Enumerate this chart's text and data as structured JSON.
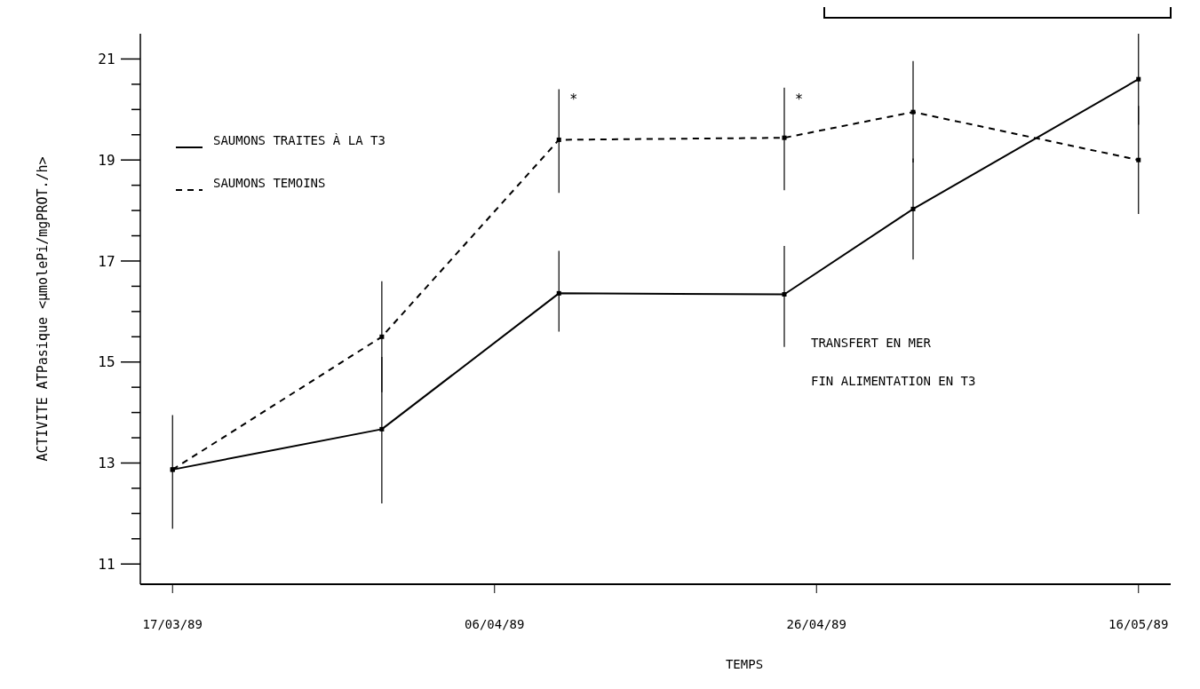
{
  "chart_data": {
    "type": "line",
    "xlabel": "TEMPS",
    "ylabel": "ACTIVITE ATPasique <µmolePi/mgPROT./h>",
    "x": [
      "1989-03-17",
      "1989-03-30",
      "1989-04-10",
      "1989-04-24",
      "1989-05-02",
      "1989-05-16"
    ],
    "series": [
      {
        "name": "SAUMONS TRAITES À LA T3",
        "color": "#000000",
        "line_style": "solid",
        "values": [
          12.87,
          13.67,
          16.36,
          16.34,
          18.03,
          20.6
        ],
        "errors": [
          [
            11.7,
            13.95
          ],
          [
            12.2,
            15.1
          ],
          [
            15.6,
            17.2
          ],
          [
            15.3,
            17.3
          ],
          [
            17.03,
            19.03
          ],
          [
            19.7,
            21.5
          ]
        ]
      },
      {
        "name": "SAUMONS TEMOINS",
        "color": "#000000",
        "line_style": "dashed",
        "values": [
          12.87,
          15.5,
          19.4,
          19.44,
          19.95,
          19.0
        ],
        "errors": [
          null,
          [
            14.4,
            16.6
          ],
          [
            18.35,
            20.4
          ],
          [
            18.4,
            20.43
          ],
          [
            18.95,
            20.96
          ],
          [
            17.93,
            20.07
          ]
        ]
      }
    ],
    "xlim": [
      "1989-03-15",
      "1989-05-18"
    ],
    "xticks": [
      {
        "value": "1989-03-17",
        "label": "17/03/89"
      },
      {
        "value": "1989-04-06",
        "label": "06/04/89"
      },
      {
        "value": "1989-04-26",
        "label": "26/04/89"
      },
      {
        "value": "1989-05-16",
        "label": "16/05/89"
      }
    ],
    "ylim": [
      10.6,
      21.5
    ],
    "yticks": [
      11,
      {
        "value": 11.5,
        "label": null
      },
      {
        "value": 12,
        "label": null
      },
      {
        "value": 12.5,
        "label": null
      },
      13,
      {
        "value": 13.5,
        "label": null
      },
      {
        "value": 14,
        "label": null
      },
      {
        "value": 14.5,
        "label": null
      },
      15,
      {
        "value": 15.5,
        "label": null
      },
      {
        "value": 16,
        "label": null
      },
      {
        "value": 16.5,
        "label": null
      },
      17,
      {
        "value": 17.5,
        "label": null
      },
      {
        "value": 18,
        "label": null
      },
      {
        "value": 18.5,
        "label": null
      },
      19,
      {
        "value": 19.5,
        "label": null
      },
      {
        "value": 20,
        "label": null
      },
      {
        "value": 20.5,
        "label": null
      },
      21
    ],
    "marker": "square",
    "legend": "top left",
    "grid": false,
    "annotations": [
      {
        "text": "*",
        "x": "1989-04-10",
        "y": 20.2
      },
      {
        "text": "*",
        "x": "1989-04-24",
        "y": 20.2
      },
      "TRANSFERT EN MER",
      "FIN ALIMENTATION EN T3"
    ]
  }
}
